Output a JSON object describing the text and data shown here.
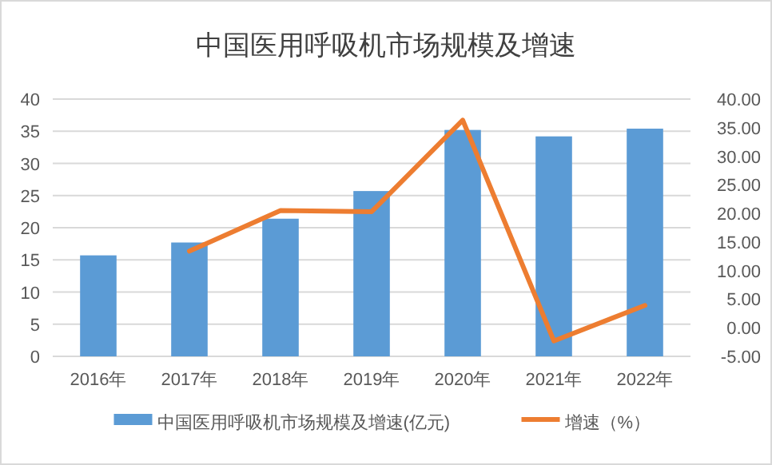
{
  "chart_data": {
    "type": "bar",
    "title": "中国医用呼吸机市场规模及增速",
    "categories": [
      "2016年",
      "2017年",
      "2018年",
      "2019年",
      "2020年",
      "2021年",
      "2022年"
    ],
    "series": [
      {
        "name": "中国医用呼吸机市场规模及增速(亿元)",
        "color": "#5b9bd5",
        "values": [
          15.7,
          17.7,
          21.4,
          25.7,
          35.2,
          34.2,
          35.4
        ]
      },
      {
        "name": "增速（%）",
        "type": "line",
        "axis": "y2",
        "color": "#ed7d31",
        "values": [
          null,
          13.4,
          20.5,
          20.3,
          36.3,
          -2.3,
          3.9
        ]
      }
    ],
    "ylim": [
      0,
      40
    ],
    "yticks": [
      0,
      5,
      10,
      15,
      20,
      25,
      30,
      35,
      40
    ],
    "y2lim": [
      -5,
      40
    ],
    "y2ticks": [
      {
        "value": -5,
        "label": "-5.00"
      },
      {
        "value": 0,
        "label": "0.00"
      },
      {
        "value": 5,
        "label": "5.00"
      },
      {
        "value": 10,
        "label": "10.00"
      },
      {
        "value": 15,
        "label": "15.00"
      },
      {
        "value": 20,
        "label": "20.00"
      },
      {
        "value": 25,
        "label": "25.00"
      },
      {
        "value": 30,
        "label": "30.00"
      },
      {
        "value": 35,
        "label": "35.00"
      },
      {
        "value": 40,
        "label": "40.00"
      }
    ],
    "grid": "y",
    "legend": "bottom",
    "marker": "none"
  }
}
